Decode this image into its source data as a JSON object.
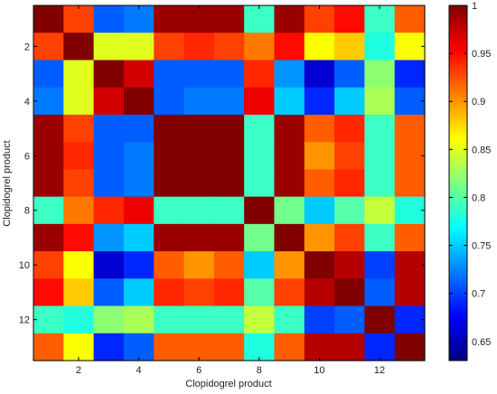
{
  "chart_data": {
    "type": "heatmap",
    "title": "",
    "xlabel": "Clopidogrel product",
    "ylabel": "Clopidogrel product",
    "rows": 13,
    "cols": 13,
    "x_ticks": [
      2,
      4,
      6,
      8,
      10,
      12
    ],
    "y_ticks": [
      2,
      4,
      6,
      8,
      10,
      12
    ],
    "colorbar": {
      "min": 0.63,
      "max": 1.0,
      "ticks": [
        0.65,
        0.7,
        0.75,
        0.8,
        0.85,
        0.9,
        0.95,
        1
      ],
      "tick_labels": [
        "0.65",
        "0.7",
        "0.75",
        "0.8",
        "0.85",
        "0.9",
        "0.95",
        "1"
      ],
      "colormap": "jet"
    },
    "matrix": [
      [
        1.0,
        0.93,
        0.71,
        0.72,
        0.99,
        0.99,
        0.99,
        0.79,
        0.99,
        0.93,
        0.95,
        0.79,
        0.92
      ],
      [
        0.93,
        1.0,
        0.85,
        0.85,
        0.93,
        0.94,
        0.93,
        0.91,
        0.95,
        0.86,
        0.88,
        0.78,
        0.86
      ],
      [
        0.71,
        0.85,
        1.0,
        0.97,
        0.71,
        0.71,
        0.71,
        0.94,
        0.73,
        0.66,
        0.71,
        0.82,
        0.69
      ],
      [
        0.72,
        0.85,
        0.97,
        1.0,
        0.71,
        0.72,
        0.72,
        0.96,
        0.75,
        0.69,
        0.75,
        0.83,
        0.71
      ],
      [
        0.99,
        0.93,
        0.71,
        0.71,
        1.0,
        1.0,
        1.0,
        0.79,
        0.99,
        0.92,
        0.94,
        0.79,
        0.92
      ],
      [
        0.99,
        0.94,
        0.71,
        0.72,
        1.0,
        1.0,
        1.0,
        0.79,
        0.99,
        0.9,
        0.93,
        0.79,
        0.92
      ],
      [
        0.99,
        0.93,
        0.71,
        0.72,
        1.0,
        1.0,
        1.0,
        0.79,
        0.99,
        0.92,
        0.94,
        0.79,
        0.92
      ],
      [
        0.79,
        0.91,
        0.94,
        0.96,
        0.79,
        0.79,
        0.79,
        1.0,
        0.81,
        0.75,
        0.8,
        0.84,
        0.78
      ],
      [
        0.99,
        0.95,
        0.73,
        0.75,
        0.99,
        0.99,
        0.99,
        0.81,
        1.0,
        0.9,
        0.93,
        0.79,
        0.92
      ],
      [
        0.93,
        0.86,
        0.66,
        0.69,
        0.92,
        0.9,
        0.92,
        0.75,
        0.9,
        1.0,
        0.98,
        0.7,
        0.98
      ],
      [
        0.95,
        0.88,
        0.71,
        0.75,
        0.94,
        0.93,
        0.94,
        0.8,
        0.93,
        0.98,
        1.0,
        0.71,
        0.98
      ],
      [
        0.79,
        0.78,
        0.82,
        0.83,
        0.79,
        0.79,
        0.79,
        0.84,
        0.79,
        0.7,
        0.71,
        1.0,
        0.69
      ],
      [
        0.92,
        0.86,
        0.69,
        0.71,
        0.92,
        0.92,
        0.92,
        0.78,
        0.92,
        0.98,
        0.98,
        0.69,
        1.0
      ]
    ]
  }
}
